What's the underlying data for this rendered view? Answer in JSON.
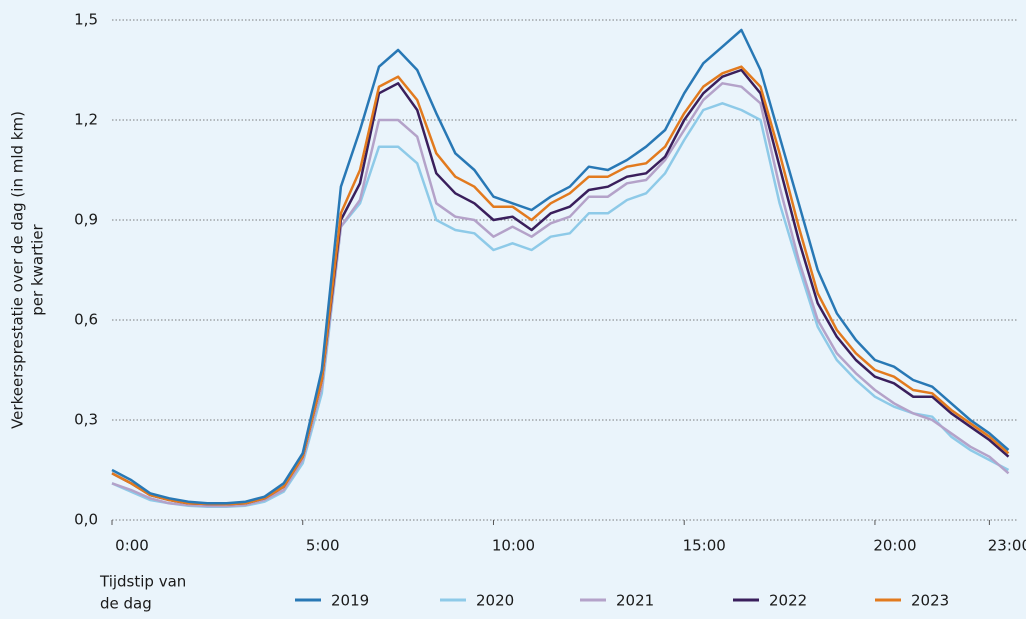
{
  "chart_data": {
    "type": "line",
    "ylabel": [
      "Verkeersprestatie over de dag (in mld km)",
      "per kwartier"
    ],
    "xlabel": [
      "Tijdstip van",
      "de dag"
    ],
    "x": [
      0,
      0.5,
      1,
      1.5,
      2,
      2.5,
      3,
      3.5,
      4,
      4.5,
      5,
      5.5,
      6,
      6.5,
      7,
      7.5,
      8,
      8.5,
      9,
      9.5,
      10,
      10.5,
      11,
      11.5,
      12,
      12.5,
      13,
      13.5,
      14,
      14.5,
      15,
      15.5,
      16,
      16.5,
      17,
      17.5,
      18,
      18.5,
      19,
      19.5,
      20,
      20.5,
      21,
      21.5,
      22,
      22.5,
      23,
      23.5
    ],
    "xlim": [
      0,
      23.75
    ],
    "xticks": [
      {
        "value": 0,
        "label": "0:00"
      },
      {
        "value": 5,
        "label": "5:00"
      },
      {
        "value": 10,
        "label": "10:00"
      },
      {
        "value": 15,
        "label": "15:00"
      },
      {
        "value": 20,
        "label": "20:00"
      },
      {
        "value": 23,
        "label": "23:00"
      }
    ],
    "ylim": [
      0,
      1.5
    ],
    "yticks": [
      {
        "value": 0,
        "label": "0,0"
      },
      {
        "value": 0.3,
        "label": "0,3"
      },
      {
        "value": 0.6,
        "label": "0,6"
      },
      {
        "value": 0.9,
        "label": "0,9"
      },
      {
        "value": 1.2,
        "label": "1,2"
      },
      {
        "value": 1.5,
        "label": "1,5"
      }
    ],
    "grid": true,
    "series": [
      {
        "name": "2019",
        "color": "#2878b5",
        "values": [
          0.15,
          0.12,
          0.08,
          0.065,
          0.055,
          0.05,
          0.05,
          0.055,
          0.07,
          0.11,
          0.2,
          0.45,
          1.0,
          1.17,
          1.36,
          1.41,
          1.35,
          1.22,
          1.1,
          1.05,
          0.97,
          0.95,
          0.93,
          0.97,
          1.0,
          1.06,
          1.05,
          1.08,
          1.12,
          1.17,
          1.28,
          1.37,
          1.42,
          1.47,
          1.35,
          1.15,
          0.95,
          0.75,
          0.62,
          0.54,
          0.48,
          0.46,
          0.42,
          0.4,
          0.35,
          0.3,
          0.26,
          0.21
        ]
      },
      {
        "name": "2020",
        "color": "#8ecae8",
        "values": [
          0.11,
          0.085,
          0.06,
          0.05,
          0.043,
          0.04,
          0.04,
          0.043,
          0.055,
          0.085,
          0.17,
          0.38,
          0.88,
          0.95,
          1.12,
          1.12,
          1.07,
          0.9,
          0.87,
          0.86,
          0.81,
          0.83,
          0.81,
          0.85,
          0.86,
          0.92,
          0.92,
          0.96,
          0.98,
          1.04,
          1.14,
          1.23,
          1.25,
          1.23,
          1.2,
          0.95,
          0.76,
          0.58,
          0.48,
          0.42,
          0.37,
          0.34,
          0.32,
          0.31,
          0.25,
          0.21,
          0.18,
          0.15
        ]
      },
      {
        "name": "2021",
        "color": "#b4a2c9",
        "values": [
          0.11,
          0.09,
          0.065,
          0.05,
          0.045,
          0.042,
          0.042,
          0.045,
          0.06,
          0.09,
          0.18,
          0.4,
          0.88,
          0.96,
          1.2,
          1.2,
          1.15,
          0.95,
          0.91,
          0.9,
          0.85,
          0.88,
          0.85,
          0.89,
          0.91,
          0.97,
          0.97,
          1.01,
          1.02,
          1.08,
          1.17,
          1.26,
          1.31,
          1.3,
          1.25,
          1.0,
          0.78,
          0.6,
          0.5,
          0.44,
          0.39,
          0.35,
          0.32,
          0.3,
          0.26,
          0.22,
          0.19,
          0.14
        ]
      },
      {
        "name": "2022",
        "color": "#3a1f5c",
        "values": [
          0.14,
          0.11,
          0.075,
          0.06,
          0.05,
          0.048,
          0.047,
          0.05,
          0.065,
          0.1,
          0.19,
          0.42,
          0.9,
          1.01,
          1.28,
          1.31,
          1.23,
          1.04,
          0.98,
          0.95,
          0.9,
          0.91,
          0.87,
          0.92,
          0.94,
          0.99,
          1.0,
          1.03,
          1.04,
          1.09,
          1.2,
          1.28,
          1.33,
          1.35,
          1.28,
          1.06,
          0.84,
          0.65,
          0.55,
          0.48,
          0.43,
          0.41,
          0.37,
          0.37,
          0.32,
          0.28,
          0.24,
          0.19
        ]
      },
      {
        "name": "2023",
        "color": "#e27a1e",
        "values": [
          0.14,
          0.11,
          0.075,
          0.06,
          0.05,
          0.048,
          0.047,
          0.05,
          0.065,
          0.1,
          0.19,
          0.42,
          0.92,
          1.05,
          1.3,
          1.33,
          1.26,
          1.1,
          1.03,
          1.0,
          0.94,
          0.94,
          0.9,
          0.95,
          0.98,
          1.03,
          1.03,
          1.06,
          1.07,
          1.12,
          1.22,
          1.3,
          1.34,
          1.36,
          1.3,
          1.1,
          0.88,
          0.68,
          0.57,
          0.5,
          0.45,
          0.43,
          0.39,
          0.38,
          0.33,
          0.29,
          0.25,
          0.2
        ]
      }
    ]
  }
}
